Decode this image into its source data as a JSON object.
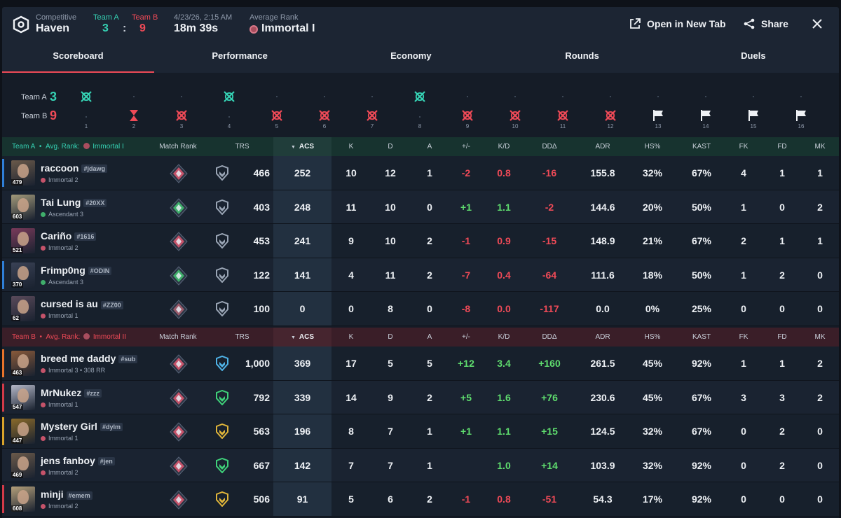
{
  "header": {
    "mode_label": "Competitive",
    "map": "Haven",
    "team_a_label": "Team A",
    "team_b_label": "Team B",
    "team_a_score": "3",
    "score_sep": ":",
    "team_b_score": "9",
    "datetime": "4/23/26, 2:15 AM",
    "duration": "18m 39s",
    "avg_rank_label": "Average Rank",
    "avg_rank": "Immortal I",
    "open_new_tab": "Open in New Tab",
    "share": "Share"
  },
  "tabs": [
    "Scoreboard",
    "Performance",
    "Economy",
    "Rounds",
    "Duels"
  ],
  "timeline": {
    "team_a_label": "Team A",
    "team_a_score": "3",
    "team_b_label": "Team B",
    "team_b_score": "9",
    "rounds": [
      {
        "n": "1",
        "winner": "A",
        "type": "elim"
      },
      {
        "n": "2",
        "winner": "B",
        "type": "time"
      },
      {
        "n": "3",
        "winner": "B",
        "type": "elim"
      },
      {
        "n": "4",
        "winner": "A",
        "type": "elim"
      },
      {
        "n": "5",
        "winner": "B",
        "type": "elim"
      },
      {
        "n": "6",
        "winner": "B",
        "type": "elim"
      },
      {
        "n": "7",
        "winner": "B",
        "type": "elim"
      },
      {
        "n": "8",
        "winner": "A",
        "type": "elim"
      },
      {
        "n": "9",
        "winner": "B",
        "type": "elim"
      },
      {
        "n": "10",
        "winner": "B",
        "type": "elim"
      },
      {
        "n": "11",
        "winner": "B",
        "type": "elim"
      },
      {
        "n": "12",
        "winner": "B",
        "type": "elim"
      },
      {
        "n": "13",
        "winner": "B",
        "type": "flag"
      },
      {
        "n": "14",
        "winner": "B",
        "type": "flag"
      },
      {
        "n": "15",
        "winner": "B",
        "type": "flag"
      },
      {
        "n": "16",
        "winner": "B",
        "type": "flag"
      }
    ]
  },
  "columns": [
    "Match Rank",
    "TRS",
    "ACS",
    "K",
    "D",
    "A",
    "+/-",
    "K/D",
    "DDΔ",
    "ADR",
    "HS%",
    "KAST",
    "FK",
    "FD",
    "MK"
  ],
  "team_a": {
    "name": "Team A",
    "avg_rank_label": "Avg. Rank:",
    "avg_rank": "Immortal I",
    "players": [
      {
        "name": "raccoon",
        "tag": "#jdawg",
        "rank": "Immortal 2",
        "level": "479",
        "trs": "466",
        "acs": "252",
        "k": "10",
        "d": "12",
        "a": "1",
        "pm": "-2",
        "kd": "0.8",
        "dd": "-16",
        "adr": "155.8",
        "hs": "32%",
        "kast": "67%",
        "fk": "4",
        "fd": "1",
        "mk": "1",
        "stripe": "#2f7fd8",
        "match_rank_color": "#c5536a",
        "trs_icon_color": "#9aa5b5",
        "avatar_color": "#6b5a4a"
      },
      {
        "name": "Tai Lung",
        "tag": "#20XX",
        "rank": "Ascendant 3",
        "level": "603",
        "trs": "403",
        "acs": "248",
        "k": "11",
        "d": "10",
        "a": "0",
        "pm": "+1",
        "kd": "1.1",
        "dd": "-2",
        "adr": "144.6",
        "hs": "20%",
        "kast": "50%",
        "fk": "1",
        "fd": "0",
        "mk": "2",
        "stripe": "",
        "match_rank_color": "#3fae6b",
        "trs_icon_color": "#9aa5b5",
        "avatar_color": "#a39a7a"
      },
      {
        "name": "Cariño",
        "tag": "#1616",
        "rank": "Immortal 2",
        "level": "521",
        "trs": "453",
        "acs": "241",
        "k": "9",
        "d": "10",
        "a": "2",
        "pm": "-1",
        "kd": "0.9",
        "dd": "-15",
        "adr": "148.9",
        "hs": "21%",
        "kast": "67%",
        "fk": "2",
        "fd": "1",
        "mk": "1",
        "stripe": "",
        "match_rank_color": "#c5536a",
        "trs_icon_color": "#9aa5b5",
        "avatar_color": "#7a3a5a"
      },
      {
        "name": "Frimp0ng",
        "tag": "#ODIN",
        "rank": "Ascendant 3",
        "level": "370",
        "trs": "122",
        "acs": "141",
        "k": "4",
        "d": "11",
        "a": "2",
        "pm": "-7",
        "kd": "0.4",
        "dd": "-64",
        "adr": "111.6",
        "hs": "18%",
        "kast": "50%",
        "fk": "1",
        "fd": "2",
        "mk": "0",
        "stripe": "#2f7fd8",
        "match_rank_color": "#3fae6b",
        "trs_icon_color": "#9aa5b5",
        "avatar_color": "#3a4256"
      },
      {
        "name": "cursed is au",
        "tag": "#ZZ00",
        "rank": "Immortal 1",
        "level": "62",
        "trs": "100",
        "acs": "0",
        "k": "0",
        "d": "8",
        "a": "0",
        "pm": "-8",
        "kd": "0.0",
        "dd": "-117",
        "adr": "0.0",
        "hs": "0%",
        "kast": "25%",
        "fk": "0",
        "fd": "0",
        "mk": "0",
        "stripe": "",
        "match_rank_color": "#9a5a6a",
        "trs_icon_color": "#9aa5b5",
        "avatar_color": "#5a4a5a"
      }
    ]
  },
  "team_b": {
    "name": "Team B",
    "avg_rank_label": "Avg. Rank:",
    "avg_rank": "Immortal II",
    "players": [
      {
        "name": "breed me daddy",
        "tag": "#sub",
        "rank": "Immortal 3 • 308 RR",
        "level": "463",
        "trs": "1,000",
        "acs": "369",
        "k": "17",
        "d": "5",
        "a": "5",
        "pm": "+12",
        "kd": "3.4",
        "dd": "+160",
        "adr": "261.5",
        "hs": "45%",
        "kast": "92%",
        "fk": "1",
        "fd": "1",
        "mk": "2",
        "stripe": "#e8732a",
        "match_rank_color": "#c5536a",
        "trs_icon_color": "#4fb3e8",
        "avatar_color": "#8a5a3a"
      },
      {
        "name": "MrNukez",
        "tag": "#zzz",
        "rank": "Immortal 1",
        "level": "547",
        "trs": "792",
        "acs": "339",
        "k": "14",
        "d": "9",
        "a": "2",
        "pm": "+5",
        "kd": "1.6",
        "dd": "+76",
        "adr": "230.6",
        "hs": "45%",
        "kast": "67%",
        "fk": "3",
        "fd": "3",
        "mk": "2",
        "stripe": "#d23a48",
        "match_rank_color": "#c5536a",
        "trs_icon_color": "#3fd17a",
        "avatar_color": "#b5b8c8"
      },
      {
        "name": "Mystery Girl",
        "tag": "#dylm",
        "rank": "Immortal 1",
        "level": "447",
        "trs": "563",
        "acs": "196",
        "k": "8",
        "d": "7",
        "a": "1",
        "pm": "+1",
        "kd": "1.1",
        "dd": "+15",
        "adr": "124.5",
        "hs": "32%",
        "kast": "67%",
        "fk": "0",
        "fd": "2",
        "mk": "0",
        "stripe": "#d8a32a",
        "match_rank_color": "#c5536a",
        "trs_icon_color": "#e0b53a",
        "avatar_color": "#8a6a2a"
      },
      {
        "name": "jens fanboy",
        "tag": "#jen",
        "rank": "Immortal 2",
        "level": "469",
        "trs": "667",
        "acs": "142",
        "k": "7",
        "d": "7",
        "a": "1",
        "pm": "",
        "kd": "1.0",
        "dd": "+14",
        "adr": "103.9",
        "hs": "32%",
        "kast": "92%",
        "fk": "0",
        "fd": "2",
        "mk": "0",
        "stripe": "",
        "match_rank_color": "#c5536a",
        "trs_icon_color": "#3fd17a",
        "avatar_color": "#6b5a4a"
      },
      {
        "name": "minji",
        "tag": "#emem",
        "rank": "Immortal 2",
        "level": "608",
        "trs": "506",
        "acs": "91",
        "k": "5",
        "d": "6",
        "a": "2",
        "pm": "-1",
        "kd": "0.8",
        "dd": "-51",
        "adr": "54.3",
        "hs": "17%",
        "kast": "92%",
        "fk": "0",
        "fd": "0",
        "mk": "0",
        "stripe": "#d23a48",
        "match_rank_color": "#c5536a",
        "trs_icon_color": "#e0b53a",
        "avatar_color": "#b5a07a"
      }
    ]
  },
  "colors": {
    "team_a": "#35d1b3",
    "team_b": "#ef4a57",
    "positive": "#5fdd6e",
    "negative": "#ef4a57"
  }
}
